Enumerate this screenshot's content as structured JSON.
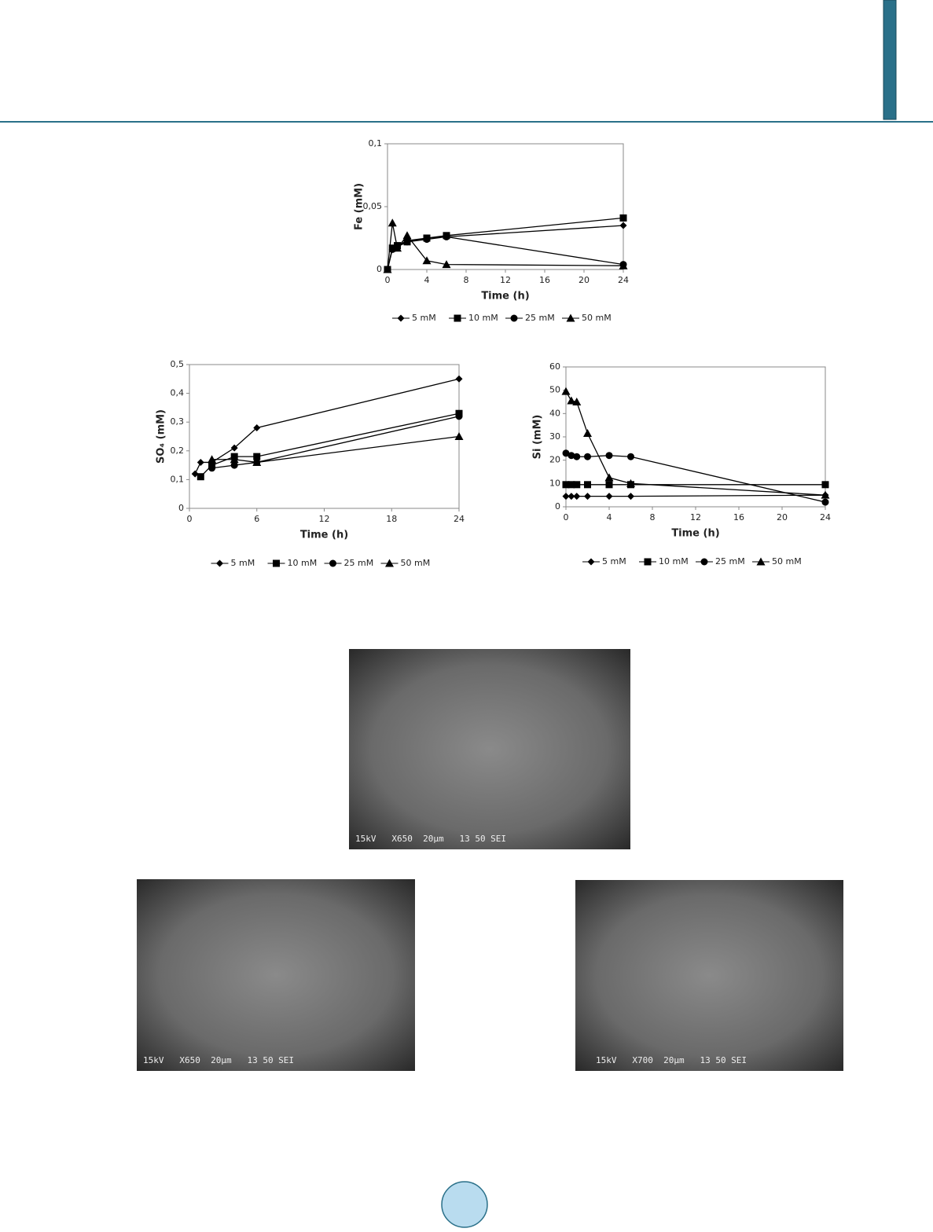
{
  "chart_data": [
    {
      "type": "line",
      "ylabel": "Fe (mM)",
      "xlabel": "Time (h)",
      "x": [
        0,
        0.5,
        1,
        2,
        4,
        6,
        24
      ],
      "xlim": [
        0,
        24
      ],
      "xticks": [
        0,
        4,
        8,
        12,
        16,
        20,
        24
      ],
      "ylim": [
        0,
        0.1
      ],
      "yticks": [
        0,
        {
          "value": 0.05,
          "label": "0,05"
        },
        {
          "value": 0.1,
          "label": "0,1"
        }
      ],
      "series": [
        {
          "name": "5 mM",
          "color": "#000000",
          "marker": "diamond",
          "values": [
            0,
            0.017,
            0.019,
            0.023,
            0.025,
            0.026,
            0.035
          ]
        },
        {
          "name": "10 mM",
          "color": "#000000",
          "marker": "square",
          "values": [
            0,
            0.017,
            0.019,
            0.022,
            0.025,
            0.027,
            0.041
          ]
        },
        {
          "name": "25 mM",
          "color": "#000000",
          "marker": "circle",
          "values": [
            0,
            0.016,
            0.018,
            0.022,
            0.024,
            0.026,
            0.004
          ]
        },
        {
          "name": "50 mM",
          "color": "#000000",
          "marker": "triangle",
          "values": [
            0,
            0.037,
            0.017,
            0.027,
            0.007,
            0.004,
            0.003
          ]
        }
      ]
    },
    {
      "type": "line",
      "ylabel": "SO₄ (mM)",
      "xlabel": "Time (h)",
      "x": [
        0.5,
        1,
        2,
        4,
        6,
        24
      ],
      "xlim": [
        0,
        24
      ],
      "xticks": [
        0,
        6,
        12,
        18,
        24
      ],
      "ylim": [
        0,
        0.5
      ],
      "yticks": [
        0,
        {
          "value": 0.1,
          "label": "0,1"
        },
        {
          "value": 0.2,
          "label": "0,2"
        },
        {
          "value": 0.3,
          "label": "0,3"
        },
        {
          "value": 0.4,
          "label": "0,4"
        },
        {
          "value": 0.5,
          "label": "0,5"
        }
      ],
      "series": [
        {
          "name": "5 mM",
          "color": "#000000",
          "marker": "diamond",
          "values": [
            0.12,
            0.16,
            0.16,
            0.21,
            0.28,
            0.45
          ]
        },
        {
          "name": "10 mM",
          "color": "#000000",
          "marker": "square",
          "values": [
            null,
            0.11,
            0.15,
            0.18,
            0.18,
            0.33
          ]
        },
        {
          "name": "25 mM",
          "color": "#000000",
          "marker": "circle",
          "values": [
            null,
            null,
            0.14,
            0.15,
            0.16,
            0.32
          ]
        },
        {
          "name": "50 mM",
          "color": "#000000",
          "marker": "triangle",
          "values": [
            null,
            null,
            0.17,
            0.17,
            0.16,
            0.25
          ]
        }
      ]
    },
    {
      "type": "line",
      "ylabel": "Si (mM)",
      "xlabel": "Time (h)",
      "x": [
        0,
        0.5,
        1,
        2,
        4,
        6,
        24
      ],
      "xlim": [
        0,
        24
      ],
      "xticks": [
        0,
        4,
        8,
        12,
        16,
        20,
        24
      ],
      "ylim": [
        0,
        60
      ],
      "yticks": [
        0,
        10,
        20,
        30,
        40,
        50,
        60
      ],
      "series": [
        {
          "name": "5 mM",
          "color": "#000000",
          "marker": "diamond",
          "values": [
            4.5,
            4.5,
            4.5,
            4.5,
            4.5,
            4.5,
            5
          ]
        },
        {
          "name": "10 mM",
          "color": "#000000",
          "marker": "square",
          "values": [
            9.5,
            9.5,
            9.5,
            9.5,
            9.5,
            9.5,
            9.5
          ]
        },
        {
          "name": "25 mM",
          "color": "#000000",
          "marker": "circle",
          "values": [
            23,
            22,
            21.5,
            21.5,
            22,
            21.5,
            2
          ]
        },
        {
          "name": "50 mM",
          "color": "#000000",
          "marker": "triangle",
          "values": [
            49.5,
            45.5,
            45,
            31.5,
            12.5,
            10,
            5
          ]
        }
      ]
    }
  ],
  "images": [
    {
      "caption": "15kV   X650  20µm   13 50 SEI"
    },
    {
      "caption": "15kV   X650  20µm   13 50 SEI"
    },
    {
      "caption": "15kV   X700  20µm   13 50 SEI"
    }
  ]
}
